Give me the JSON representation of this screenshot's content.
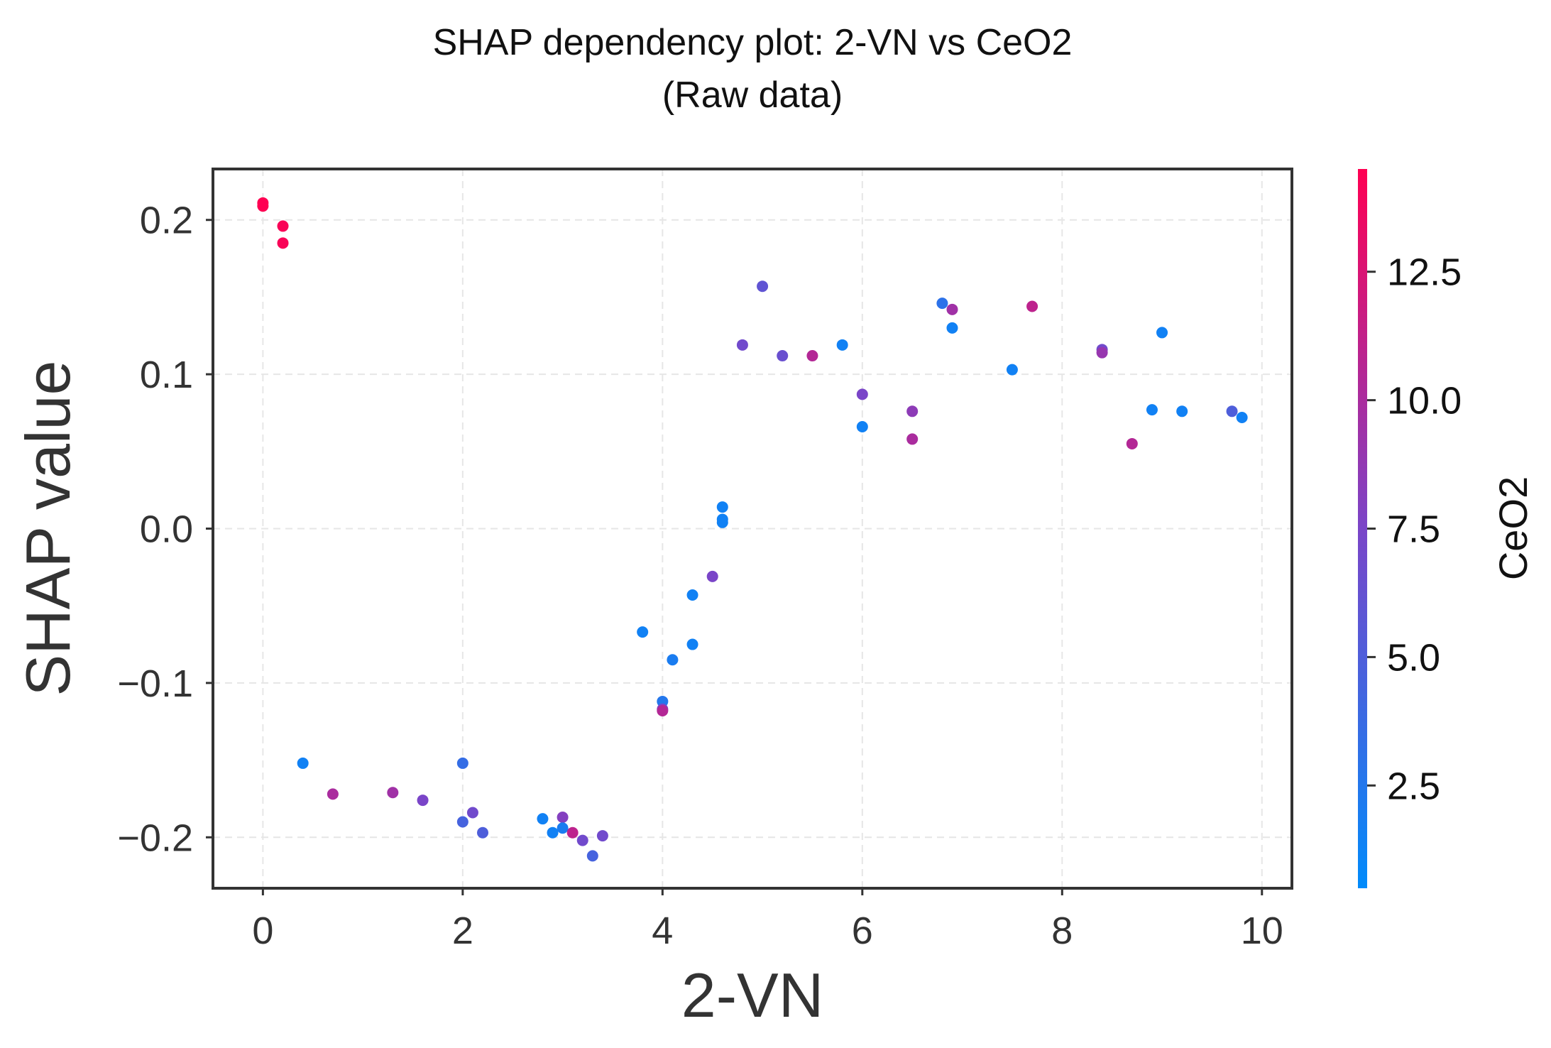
{
  "chart_data": {
    "type": "scatter",
    "title": "SHAP dependency plot: 2-VN vs CeO2",
    "subtitle": "(Raw data)",
    "xlabel": "2-VN",
    "ylabel": "SHAP value",
    "xlim": [
      -0.5,
      10.3
    ],
    "ylim": [
      -0.233,
      0.233
    ],
    "xticks": [
      0,
      2,
      4,
      6,
      8,
      10
    ],
    "xtick_labels": [
      "0",
      "2",
      "4",
      "6",
      "8",
      "10"
    ],
    "yticks": [
      0.2,
      0.1,
      0.0,
      -0.1,
      -0.2
    ],
    "ytick_labels": [
      "0.2",
      "0.1",
      "0.0",
      "−0.1",
      "−0.2"
    ],
    "grid": true,
    "colorbar": {
      "label": "CeO2",
      "range": [
        0.5,
        14.5
      ],
      "ticks": [
        2.5,
        5.0,
        7.5,
        10.0,
        12.5
      ],
      "tick_labels": [
        "2.5",
        "5.0",
        "7.5",
        "10.0",
        "12.5"
      ],
      "colormap": [
        "#008bfb",
        "#ff0052"
      ]
    },
    "points": [
      {
        "x": 0.0,
        "y": 0.211,
        "c": 14.5
      },
      {
        "x": 0.0,
        "y": 0.209,
        "c": 14.5
      },
      {
        "x": 0.2,
        "y": 0.196,
        "c": 14.2
      },
      {
        "x": 0.2,
        "y": 0.185,
        "c": 14.2
      },
      {
        "x": 0.4,
        "y": -0.152,
        "c": 1.5
      },
      {
        "x": 0.7,
        "y": -0.172,
        "c": 10.0
      },
      {
        "x": 1.3,
        "y": -0.171,
        "c": 9.5
      },
      {
        "x": 1.6,
        "y": -0.176,
        "c": 7.5
      },
      {
        "x": 2.0,
        "y": -0.152,
        "c": 3.5
      },
      {
        "x": 2.0,
        "y": -0.19,
        "c": 4.5
      },
      {
        "x": 2.1,
        "y": -0.184,
        "c": 7.0
      },
      {
        "x": 2.2,
        "y": -0.197,
        "c": 5.0
      },
      {
        "x": 2.8,
        "y": -0.188,
        "c": 1.5
      },
      {
        "x": 2.9,
        "y": -0.197,
        "c": 1.5
      },
      {
        "x": 3.0,
        "y": -0.187,
        "c": 8.0
      },
      {
        "x": 3.0,
        "y": -0.194,
        "c": 2.0
      },
      {
        "x": 3.1,
        "y": -0.197,
        "c": 11.0
      },
      {
        "x": 3.2,
        "y": -0.202,
        "c": 7.0
      },
      {
        "x": 3.3,
        "y": -0.212,
        "c": 4.5
      },
      {
        "x": 3.4,
        "y": -0.199,
        "c": 7.0
      },
      {
        "x": 3.8,
        "y": -0.067,
        "c": 1.5
      },
      {
        "x": 4.0,
        "y": -0.112,
        "c": 2.5
      },
      {
        "x": 4.0,
        "y": -0.117,
        "c": 7.5
      },
      {
        "x": 4.0,
        "y": -0.118,
        "c": 10.5
      },
      {
        "x": 4.1,
        "y": -0.085,
        "c": 2.0
      },
      {
        "x": 4.3,
        "y": -0.043,
        "c": 1.5
      },
      {
        "x": 4.3,
        "y": -0.075,
        "c": 1.5
      },
      {
        "x": 4.5,
        "y": -0.031,
        "c": 7.5
      },
      {
        "x": 4.6,
        "y": 0.014,
        "c": 1.5
      },
      {
        "x": 4.6,
        "y": 0.006,
        "c": 1.5
      },
      {
        "x": 4.6,
        "y": 0.004,
        "c": 1.5
      },
      {
        "x": 4.8,
        "y": 0.119,
        "c": 7.0
      },
      {
        "x": 5.0,
        "y": 0.157,
        "c": 6.0
      },
      {
        "x": 5.2,
        "y": 0.112,
        "c": 6.5
      },
      {
        "x": 5.5,
        "y": 0.112,
        "c": 10.5
      },
      {
        "x": 5.8,
        "y": 0.119,
        "c": 1.5
      },
      {
        "x": 6.0,
        "y": 0.087,
        "c": 7.5
      },
      {
        "x": 6.0,
        "y": 0.066,
        "c": 1.5
      },
      {
        "x": 6.5,
        "y": 0.076,
        "c": 8.5
      },
      {
        "x": 6.5,
        "y": 0.058,
        "c": 10.0
      },
      {
        "x": 6.8,
        "y": 0.146,
        "c": 3.0
      },
      {
        "x": 6.9,
        "y": 0.142,
        "c": 9.5
      },
      {
        "x": 6.9,
        "y": 0.13,
        "c": 1.5
      },
      {
        "x": 7.5,
        "y": 0.103,
        "c": 1.5
      },
      {
        "x": 7.7,
        "y": 0.144,
        "c": 11.0
      },
      {
        "x": 8.4,
        "y": 0.116,
        "c": 7.0
      },
      {
        "x": 8.4,
        "y": 0.114,
        "c": 9.0
      },
      {
        "x": 8.7,
        "y": 0.055,
        "c": 10.5
      },
      {
        "x": 8.9,
        "y": 0.077,
        "c": 1.5
      },
      {
        "x": 9.0,
        "y": 0.127,
        "c": 1.5
      },
      {
        "x": 9.2,
        "y": 0.076,
        "c": 1.5
      },
      {
        "x": 9.7,
        "y": 0.076,
        "c": 5.0
      },
      {
        "x": 9.8,
        "y": 0.072,
        "c": 1.5
      }
    ]
  }
}
